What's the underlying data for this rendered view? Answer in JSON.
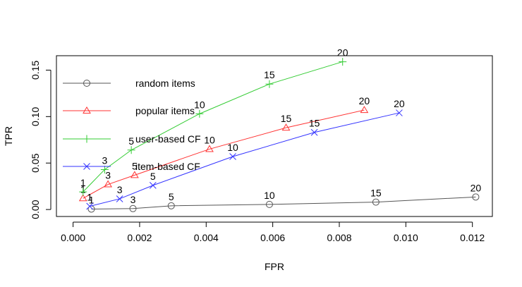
{
  "chart_data": {
    "type": "line",
    "title": "",
    "xlabel": "FPR",
    "ylabel": "TPR",
    "xlim": [
      -0.0005,
      0.0126
    ],
    "ylim": [
      -0.0075,
      0.1655
    ],
    "x_ticks": [
      0.0,
      0.002,
      0.004,
      0.006,
      0.008,
      0.01,
      0.012
    ],
    "x_tick_labels": [
      "0.000",
      "0.002",
      "0.004",
      "0.006",
      "0.008",
      "0.010",
      "0.012"
    ],
    "y_ticks": [
      0.0,
      0.05,
      0.1,
      0.15
    ],
    "y_tick_labels": [
      "0.00",
      "0.05",
      "0.10",
      "0.15"
    ],
    "grid": false,
    "legend_position": "top-left",
    "series": [
      {
        "name": "random items",
        "color": "#555555",
        "marker": "circle",
        "x": [
          0.00055,
          0.0018,
          0.00295,
          0.0059,
          0.0091,
          0.0121
        ],
        "y": [
          0.0005,
          0.001,
          0.004,
          0.0055,
          0.008,
          0.0135
        ],
        "labels": [
          "1",
          "3",
          "5",
          "10",
          "15",
          "20"
        ]
      },
      {
        "name": "popular items",
        "color": "#ff3333",
        "marker": "triangle",
        "x": [
          0.0003,
          0.00105,
          0.00185,
          0.0041,
          0.0064,
          0.00875
        ],
        "y": [
          0.012,
          0.027,
          0.037,
          0.065,
          0.088,
          0.107
        ],
        "labels": [
          "1",
          "3",
          "5",
          "10",
          "15",
          "20"
        ]
      },
      {
        "name": "user-based CF",
        "color": "#33cc33",
        "marker": "plus",
        "x": [
          0.0003,
          0.00095,
          0.00175,
          0.0038,
          0.0059,
          0.0081
        ],
        "y": [
          0.019,
          0.043,
          0.064,
          0.103,
          0.135,
          0.159
        ],
        "labels": [
          "1",
          "3",
          "5",
          "10",
          "15",
          "20"
        ]
      },
      {
        "name": "item-based CF",
        "color": "#3333ff",
        "marker": "x",
        "x": [
          0.0005,
          0.0014,
          0.0024,
          0.0048,
          0.00725,
          0.0098
        ],
        "y": [
          0.0035,
          0.0115,
          0.026,
          0.057,
          0.083,
          0.104
        ],
        "labels": [
          "1",
          "3",
          "5",
          "10",
          "15",
          "20"
        ]
      }
    ]
  }
}
